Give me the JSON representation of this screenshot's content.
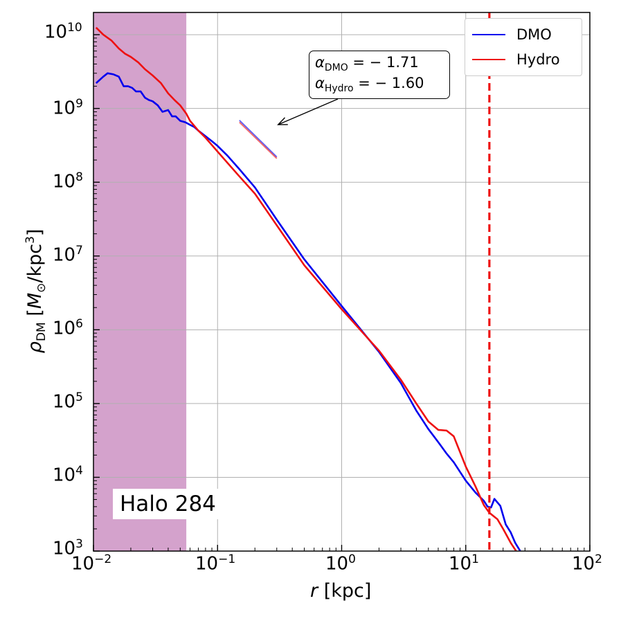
{
  "chart_data": {
    "type": "line",
    "xscale": "log",
    "yscale": "log",
    "xlim": [
      0.01,
      100
    ],
    "ylim": [
      1000,
      20000000000
    ],
    "xlabel": "r [kpc]",
    "ylabel": "ρDM [M⊙/kpc³]",
    "x_ticks": [
      "10−2",
      "10−1",
      "100",
      "101",
      "102"
    ],
    "y_ticks": [
      "103",
      "104",
      "105",
      "106",
      "107",
      "108",
      "109",
      "1010"
    ],
    "grid": true,
    "legend_placement": "top-right",
    "shaded_region": {
      "x_from": 0.01,
      "x_to": 0.056,
      "color": "#d4a2cc"
    },
    "vertical_line": {
      "x": 15.5,
      "color": "#ee1111",
      "style": "dashed"
    },
    "series": [
      {
        "name": "DMO",
        "color": "#0000ee",
        "x": [
          0.0105,
          0.012,
          0.013,
          0.0145,
          0.016,
          0.0175,
          0.019,
          0.0205,
          0.022,
          0.024,
          0.026,
          0.028,
          0.03,
          0.033,
          0.036,
          0.04,
          0.043,
          0.046,
          0.05,
          0.055,
          0.06,
          0.065,
          0.07,
          0.08,
          0.09,
          0.1,
          0.12,
          0.15,
          0.2,
          0.3,
          0.5,
          1.0,
          2.0,
          3.0,
          4.0,
          5.0,
          6.0,
          7.0,
          8.0,
          10.0,
          12.0,
          14.0,
          15.0,
          16.0,
          17.0,
          19.0,
          21.0,
          23.0,
          25.0,
          27.5
        ],
        "y": [
          2200000000,
          2700000000,
          3000000000,
          2900000000,
          2700000000,
          2000000000,
          2000000000,
          1900000000,
          1700000000,
          1700000000,
          1400000000,
          1300000000,
          1250000000,
          1100000000,
          900000000,
          950000000,
          780000000,
          780000000,
          680000000,
          650000000,
          600000000,
          560000000,
          500000000,
          420000000,
          360000000,
          310000000,
          230000000,
          150000000,
          85000000,
          31000000,
          9000000,
          2100000,
          500000,
          190000,
          80000,
          45000,
          30000,
          21000,
          16000,
          9000,
          6200,
          4800,
          4000,
          3900,
          5100,
          4100,
          2300,
          1800,
          1300,
          1000
        ]
      },
      {
        "name": "Hydro",
        "color": "#ee1111",
        "x": [
          0.0105,
          0.012,
          0.014,
          0.016,
          0.018,
          0.02,
          0.023,
          0.026,
          0.03,
          0.035,
          0.04,
          0.045,
          0.05,
          0.056,
          0.06,
          0.07,
          0.08,
          0.1,
          0.15,
          0.2,
          0.3,
          0.5,
          1.0,
          2.0,
          3.0,
          4.0,
          5.0,
          6.0,
          7.0,
          8.0,
          10.0,
          12.0,
          14.0,
          15.5,
          18.0,
          20.0,
          23.0,
          26.0
        ],
        "y": [
          12500000000,
          10000000000,
          8300000000,
          6500000000,
          5500000000,
          5000000000,
          4200000000,
          3400000000,
          2800000000,
          2200000000,
          1600000000,
          1300000000,
          1100000000,
          850000000,
          680000000,
          500000000,
          400000000,
          260000000,
          120000000,
          70000000,
          26000000,
          7500000,
          1900000,
          520000,
          210000,
          100000,
          57000,
          44000,
          43000,
          36000,
          14000,
          7500,
          4200,
          3300,
          2700,
          2000,
          1300,
          950
        ]
      }
    ],
    "slope_lines": [
      {
        "x": [
          0.15,
          0.3
        ],
        "y": [
          690000000,
          220000000
        ],
        "color": "#0000ee"
      },
      {
        "x": [
          0.15,
          0.3
        ],
        "y": [
          650000000,
          210000000
        ],
        "color": "#ee1111"
      }
    ],
    "annotation": {
      "line1": "αDMO = −1.71",
      "line2": "αHydro = −1.60",
      "arrow_to": {
        "x": 0.3,
        "y": 630000000
      }
    },
    "halo_label": "Halo 284"
  }
}
